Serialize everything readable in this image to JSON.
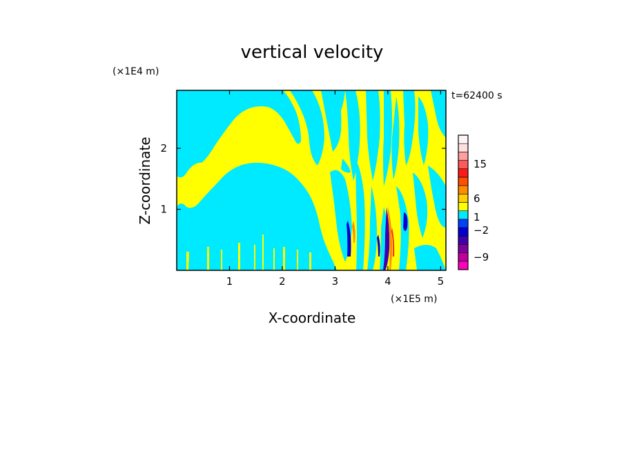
{
  "chart_data": {
    "type": "heatmap",
    "title": "vertical velocity",
    "xlabel": "X-coordinate",
    "ylabel": "Z-coordinate",
    "x_scale_label": "(×1E5 m)",
    "y_scale_label": "(×1E4 m)",
    "time_label": "t=62400 s",
    "xlim": [
      0,
      5.1
    ],
    "ylim": [
      0,
      2.95
    ],
    "x_ticks": [
      1,
      2,
      3,
      4,
      5
    ],
    "y_ticks": [
      1,
      2
    ],
    "x_tick_labels": [
      "1",
      "2",
      "3",
      "4",
      "5"
    ],
    "y_tick_labels": [
      "1",
      "2"
    ],
    "colorbar": {
      "tick_values": [
        15,
        6,
        1,
        -2,
        -9
      ],
      "tick_labels": [
        "15",
        "6",
        "1",
        "−2",
        "−9"
      ],
      "colors": [
        "#ff00bf",
        "#c0009e",
        "#8000a0",
        "#4000b0",
        "#0000d0",
        "#0040ff",
        "#00eaff",
        "#ffff00",
        "#ffd000",
        "#ff8c00",
        "#ff5000",
        "#ff1a1a",
        "#ff5a5a",
        "#ffa0a0",
        "#ffdede",
        "#fff4f4"
      ],
      "category_colors": {
        "positive_small": "#ffff00",
        "negative_small": "#00eaff"
      }
    }
  }
}
